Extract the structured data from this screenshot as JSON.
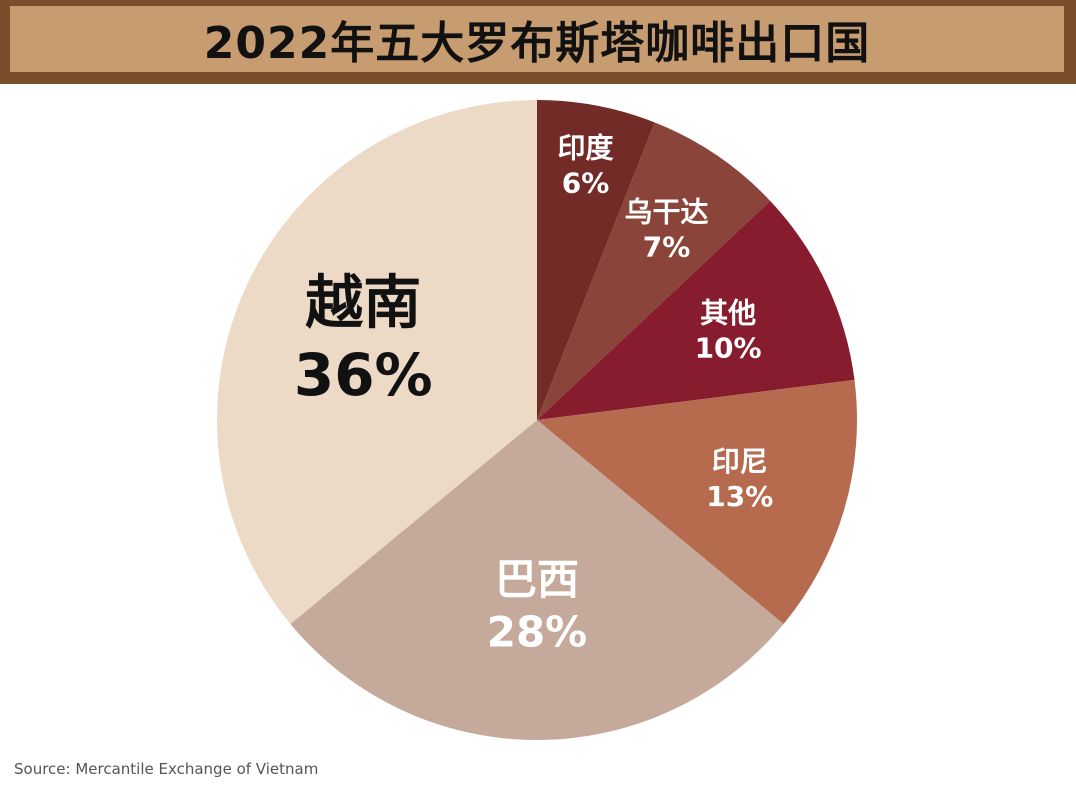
{
  "chart_data": {
    "type": "pie",
    "title": "2022年五大罗布斯塔咖啡出口国",
    "slices": [
      {
        "name": "印度",
        "value": 6,
        "label": "6%",
        "color": "#722b27"
      },
      {
        "name": "乌干达",
        "value": 7,
        "label": "7%",
        "color": "#8a443a"
      },
      {
        "name": "其他",
        "value": 10,
        "label": "10%",
        "color": "#871c2e"
      },
      {
        "name": "印尼",
        "value": 13,
        "label": "13%",
        "color": "#b66b4f"
      },
      {
        "name": "巴西",
        "value": 28,
        "label": "28%",
        "color": "#c5aa9c"
      },
      {
        "name": "越南",
        "value": 36,
        "label": "36%",
        "color": "#eddac6"
      }
    ],
    "label_colors": {
      "light": "#ffffff",
      "dark": "#111111"
    }
  },
  "footer": {
    "source": "Source: Mercantile Exchange of Vietnam"
  },
  "colors": {
    "title_border": "#7a4e2a",
    "title_fill": "#c69c70"
  }
}
